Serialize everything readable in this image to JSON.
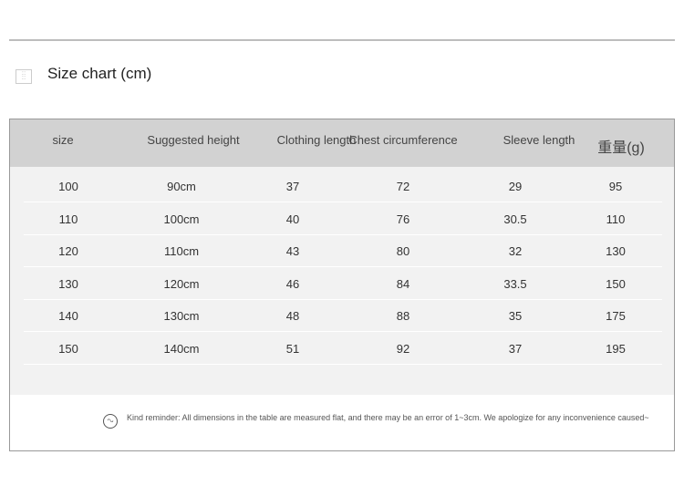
{
  "title": "Size chart (cm)",
  "table": {
    "headers": [
      "size",
      "Suggested height",
      "Clothing length",
      "Chest circumference",
      "Sleeve length",
      "重量(g)"
    ],
    "rows": [
      [
        "100",
        "90cm",
        "37",
        "72",
        "29",
        "95"
      ],
      [
        "110",
        "100cm",
        "40",
        "76",
        "30.5",
        "110"
      ],
      [
        "120",
        "110cm",
        "43",
        "80",
        "32",
        "130"
      ],
      [
        "130",
        "120cm",
        "46",
        "84",
        "33.5",
        "150"
      ],
      [
        "140",
        "130cm",
        "48",
        "88",
        "35",
        "175"
      ],
      [
        "150",
        "140cm",
        "51",
        "92",
        "37",
        "195"
      ]
    ]
  },
  "note": "Kind reminder: All dimensions in the table are measured flat, and there may be an error of 1~3cm. We apologize for any inconvenience caused~",
  "icons": {
    "title": "grid-icon",
    "note": "smiley-icon"
  }
}
